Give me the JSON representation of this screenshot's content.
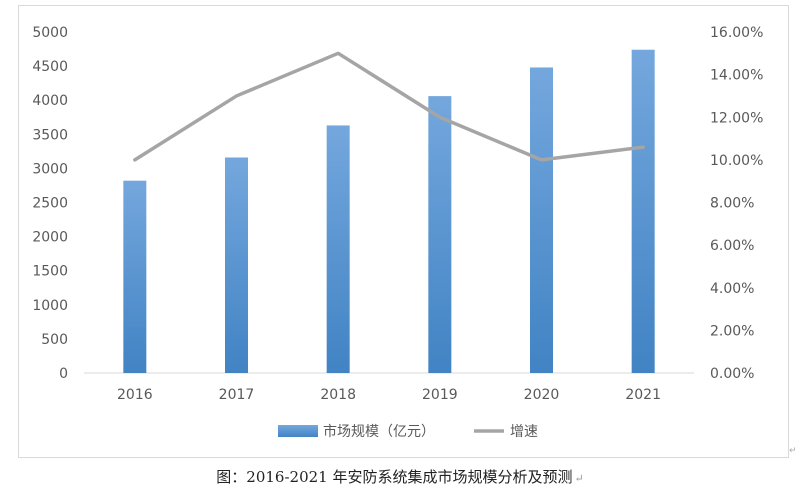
{
  "chart_data": {
    "type": "bar",
    "categories": [
      "2016",
      "2017",
      "2018",
      "2019",
      "2020",
      "2021"
    ],
    "series": [
      {
        "name": "市场规模（亿元）",
        "type": "bar",
        "axis": "left",
        "values": [
          2820,
          3160,
          3630,
          4060,
          4480,
          4740
        ]
      },
      {
        "name": "增速",
        "type": "line",
        "axis": "right",
        "values": [
          10.0,
          13.0,
          15.0,
          12.0,
          10.0,
          10.6
        ]
      }
    ],
    "ylim_left": [
      0,
      5000
    ],
    "yticks_left": [
      "0",
      "500",
      "1000",
      "1500",
      "2000",
      "2500",
      "3000",
      "3500",
      "4000",
      "4500",
      "5000"
    ],
    "ylim_right": [
      0,
      16
    ],
    "yticks_right": [
      "0.00%",
      "2.00%",
      "4.00%",
      "6.00%",
      "8.00%",
      "10.00%",
      "12.00%",
      "14.00%",
      "16.00%"
    ],
    "grid": false,
    "legend_position": "bottom",
    "colors": {
      "bar_top": "#74a7dd",
      "bar_bottom": "#4183c4",
      "line": "#a5a5a5"
    }
  },
  "caption": "图：2016-2021 年安防系统集成市场规模分析及预测"
}
